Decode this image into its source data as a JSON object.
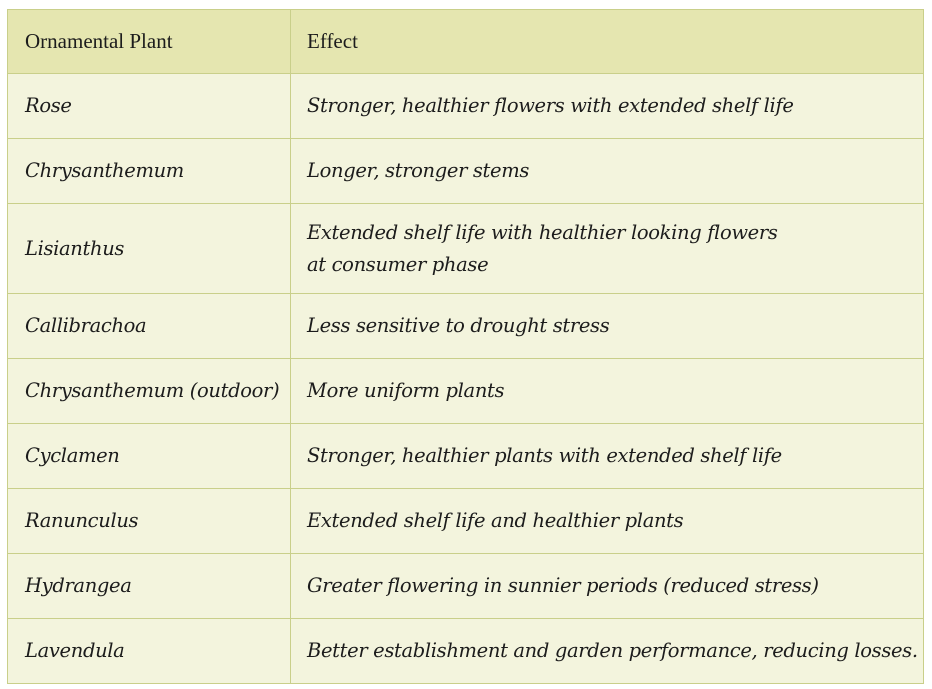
{
  "table": {
    "headers": [
      "Ornamental Plant",
      "Effect"
    ],
    "rows": [
      {
        "plant": "Rose",
        "effect": "Stronger, healthier flowers with extended shelf  life"
      },
      {
        "plant": "Chrysanthemum",
        "effect": "Longer, stronger stems"
      },
      {
        "plant": "Lisianthus",
        "effect_lines": [
          "Extended shelf  life with healthier looking flowers",
          "at consumer phase"
        ]
      },
      {
        "plant": "Callibrachoa",
        "effect": "Less sensitive to drought stress"
      },
      {
        "plant": "Chrysanthemum (outdoor)",
        "effect": "More uniform plants"
      },
      {
        "plant": "Cyclamen",
        "effect": "Stronger, healthier plants with extended shelf  life"
      },
      {
        "plant": "Ranunculus",
        "effect": "Extended shelf  life and healthier plants"
      },
      {
        "plant": "Hydrangea",
        "effect": "Greater flowering in sunnier periods (reduced stress)"
      },
      {
        "plant": "Lavendula",
        "effect": "Better establishment and garden performance, reducing losses."
      }
    ]
  },
  "colors": {
    "header_background": "#e5e6b0",
    "row_background": "#f3f4dd",
    "border": "#c9cf8a",
    "text": "#1c1c1c"
  }
}
